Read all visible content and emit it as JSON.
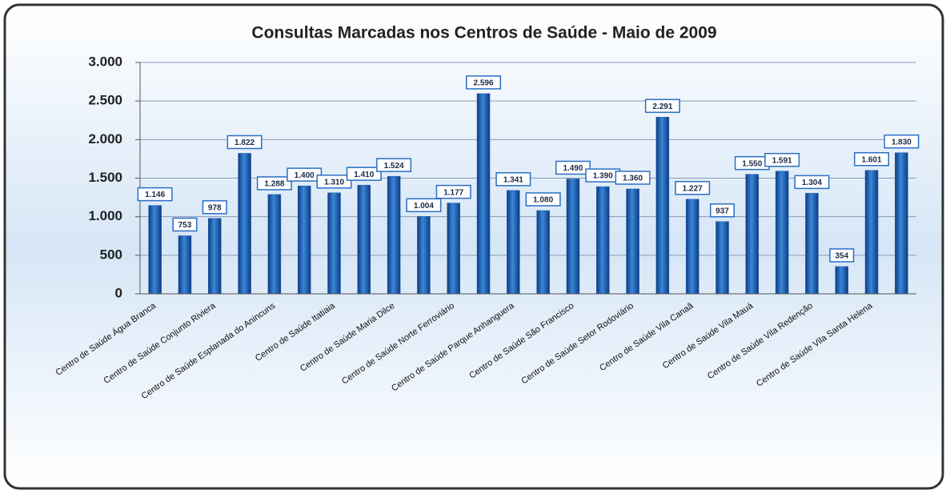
{
  "chart_data": {
    "type": "bar",
    "title": "Consultas Marcadas nos Centros de Saúde - Maio de 2009",
    "categories": [
      "Centro de Saúde Água Branca",
      null,
      "Centro de Saúde Conjunto Riviera",
      null,
      "Centro de Saúde Esplanada do Anincuns",
      null,
      "Centro de Saúde Itatiaia",
      null,
      "Centro de Saúde Maria Dilce",
      null,
      "Centro de Saúde Norte Ferroviário",
      null,
      "Centro de Saúde Parque Anhanguera",
      null,
      "Centro de Saúde São Francisco",
      null,
      "Centro de Saúde Setor Rodoviário",
      null,
      "Centro de Saúde Vila Canaã",
      null,
      "Centro de Saúde Vila Mauá",
      null,
      "Centro de Saúde Vila Redenção",
      null,
      "Centro de Saúde Vila Santa Helena",
      null
    ],
    "values": [
      1146,
      753,
      978,
      1822,
      1288,
      1400,
      1310,
      1410,
      1524,
      1004,
      1177,
      2596,
      1341,
      1080,
      1490,
      1390,
      1360,
      2291,
      1227,
      937,
      1550,
      1591,
      1304,
      354,
      1601,
      1830
    ],
    "value_labels": [
      "1.146",
      "753",
      "978",
      "1.822",
      "1.288",
      "1.400",
      "1.310",
      "1.410",
      "1.524",
      "1.004",
      "1.177",
      "2.596",
      "1.341",
      "1.080",
      "1.490",
      "1.390",
      "1.360",
      "2.291",
      "1.227",
      "937",
      "1.550",
      "1.591",
      "1.304",
      "354",
      "1.601",
      "1.830"
    ],
    "color": "#1f5fb0",
    "ylim": [
      0,
      3000
    ],
    "yticks": [
      0,
      500,
      {
        "value": 1000,
        "label": "1.000"
      },
      {
        "value": 1500,
        "label": "1.500"
      },
      {
        "value": 2000,
        "label": "2.000"
      },
      {
        "value": 2500,
        "label": "2.500"
      },
      {
        "value": 3000,
        "label": "3.000"
      }
    ],
    "grid": true
  }
}
